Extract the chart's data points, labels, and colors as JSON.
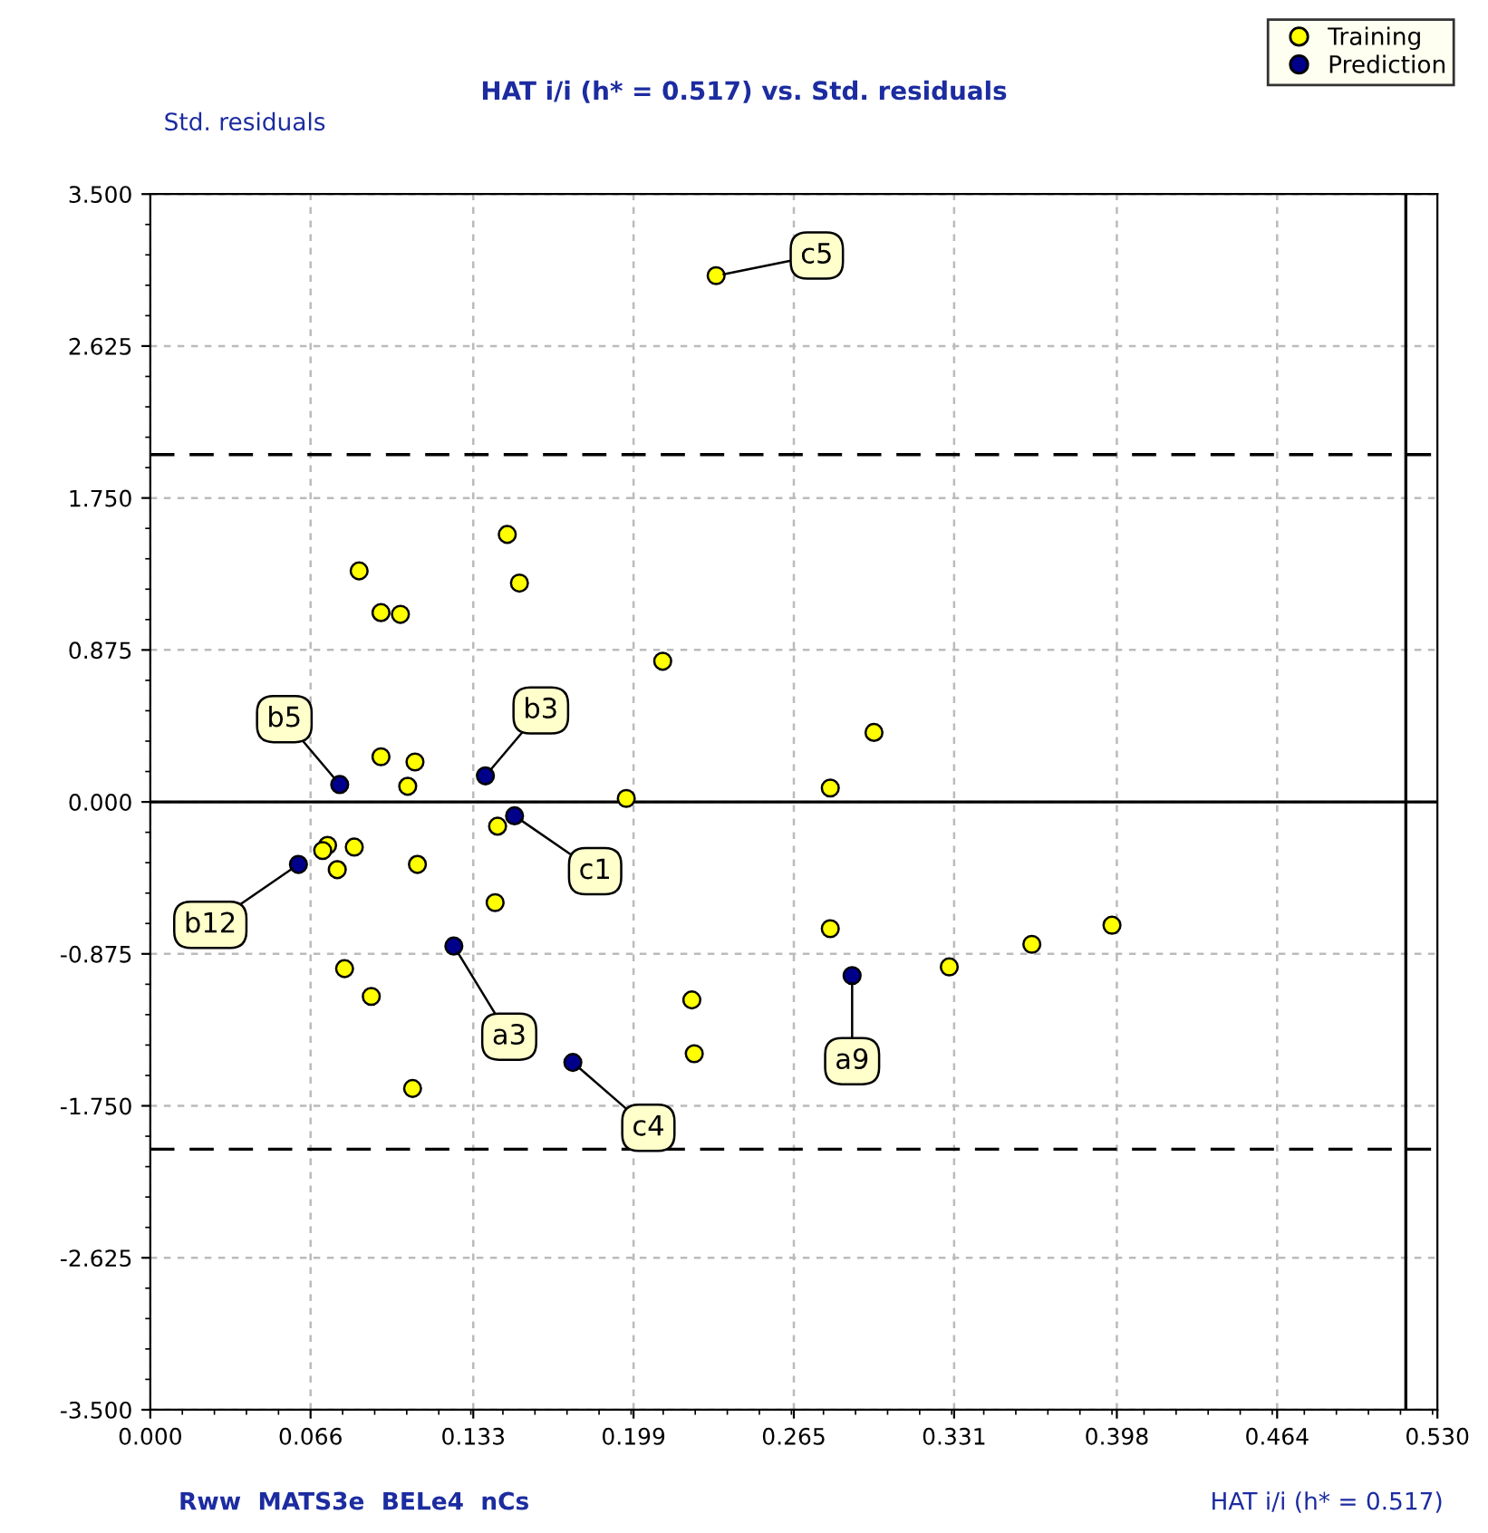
{
  "chart_data": {
    "type": "scatter",
    "title": "HAT i/i (h* = 0.517) vs. Std. residuals",
    "xlabel": "HAT i/i (h* = 0.517)",
    "ylabel": "Std. residuals",
    "xlim": [
      0,
      0.53
    ],
    "ylim": [
      -3.5,
      3.5
    ],
    "xticks": [
      {
        "value": 0,
        "label": "0.000"
      },
      {
        "value": 0.066,
        "label": "0.066"
      },
      {
        "value": 0.133,
        "label": "0.133"
      },
      {
        "value": 0.199,
        "label": "0.199"
      },
      {
        "value": 0.265,
        "label": "0.265"
      },
      {
        "value": 0.331,
        "label": "0.331"
      },
      {
        "value": 0.398,
        "label": "0.398"
      },
      {
        "value": 0.464,
        "label": "0.464"
      },
      {
        "value": 0.53,
        "label": "0.530"
      }
    ],
    "yticks": [
      {
        "value": -3.5,
        "label": "-3.500"
      },
      {
        "value": -2.625,
        "label": "-2.625"
      },
      {
        "value": -1.75,
        "label": "-1.750"
      },
      {
        "value": -0.875,
        "label": "-0.875"
      },
      {
        "value": 0,
        "label": "0.000"
      },
      {
        "value": 0.875,
        "label": "0.875"
      },
      {
        "value": 1.75,
        "label": "1.750"
      },
      {
        "value": 2.625,
        "label": "2.625"
      },
      {
        "value": 3.5,
        "label": "3.500"
      }
    ],
    "grid": true,
    "legend": "top right",
    "marker": "circle",
    "series": [
      {
        "name": "Training",
        "color": "#ffff00",
        "x": [
          0.147,
          0.086,
          0.152,
          0.095,
          0.103,
          0.211,
          0.095,
          0.109,
          0.106,
          0.196,
          0.143,
          0.073,
          0.071,
          0.084,
          0.077,
          0.11,
          0.142,
          0.08,
          0.091,
          0.108,
          0.223,
          0.224,
          0.28,
          0.233,
          0.298,
          0.28,
          0.329,
          0.363,
          0.396
        ],
        "values": [
          1.54,
          1.33,
          1.26,
          1.09,
          1.08,
          0.81,
          0.26,
          0.23,
          0.09,
          0.02,
          -0.14,
          -0.25,
          -0.28,
          -0.26,
          -0.39,
          -0.36,
          -0.58,
          -0.96,
          -1.12,
          -1.65,
          -1.14,
          -1.45,
          -0.73,
          3.03,
          0.4,
          0.08,
          -0.95,
          -0.82,
          -0.71
        ]
      },
      {
        "name": "Prediction",
        "color": "#00008b",
        "x": [
          0.078,
          0.138,
          0.15,
          0.061,
          0.125,
          0.174,
          0.289
        ],
        "values": [
          0.1,
          0.15,
          -0.08,
          -0.36,
          -0.83,
          -1.5,
          -1.0
        ]
      }
    ],
    "ref_lines": [
      {
        "axis": "y",
        "value": 2.0,
        "line_style": "dashed",
        "color": "#000000"
      },
      {
        "axis": "y",
        "value": -2.0,
        "line_style": "dashed",
        "color": "#000000"
      },
      {
        "axis": "y",
        "value": 0,
        "line_style": "solid",
        "color": "#000000"
      },
      {
        "axis": "x",
        "value": 0.517,
        "line_style": "solid",
        "color": "#000000"
      }
    ],
    "annotations": [
      {
        "text": "c5",
        "x": 0.233,
        "y": 3.03
      },
      {
        "text": "b5",
        "x": 0.078,
        "y": 0.1
      },
      {
        "text": "b3",
        "x": 0.138,
        "y": 0.15
      },
      {
        "text": "c1",
        "x": 0.15,
        "y": -0.08
      },
      {
        "text": "b12",
        "x": 0.061,
        "y": -0.36
      },
      {
        "text": "a3",
        "x": 0.125,
        "y": -0.83
      },
      {
        "text": "c4",
        "x": 0.174,
        "y": -1.5
      },
      {
        "text": "a9",
        "x": 0.289,
        "y": -1.0
      },
      "Rww  MATS3e  BELe4  nCs"
    ]
  }
}
